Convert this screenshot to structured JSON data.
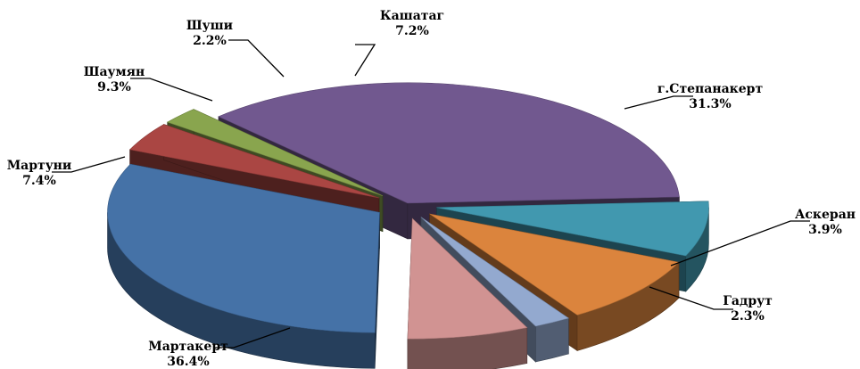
{
  "chart_data": {
    "type": "pie",
    "style": "3d-exploded",
    "legend": "none",
    "slices": [
      {
        "name": "г.Степанакерт",
        "value": 31.3,
        "label": "31.3%",
        "color": "#4572a7"
      },
      {
        "name": "Аскеран",
        "value": 3.9,
        "label": "3.9%",
        "color": "#aa4643"
      },
      {
        "name": "Гадрут",
        "value": 2.3,
        "label": "2.3%",
        "color": "#89a54e"
      },
      {
        "name": "Мартакерт",
        "value": 36.4,
        "label": "36.4%",
        "color": "#71588f"
      },
      {
        "name": "Мартуни",
        "value": 7.4,
        "label": "7.4%",
        "color": "#4198af"
      },
      {
        "name": "Шаумян",
        "value": 9.3,
        "label": "9.3%",
        "color": "#db843d"
      },
      {
        "name": "Шуши",
        "value": 2.2,
        "label": "2.2%",
        "color": "#93a9cf"
      },
      {
        "name": "Кашатаг",
        "value": 7.2,
        "label": "7.2%",
        "color": "#d19392"
      }
    ]
  }
}
